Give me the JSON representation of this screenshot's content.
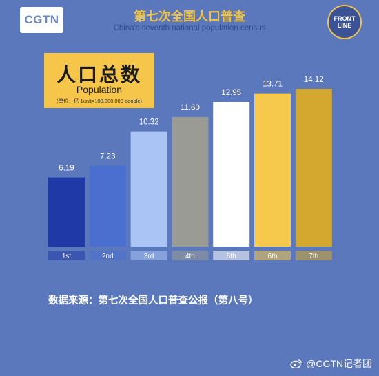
{
  "header": {
    "brand": "CGTN",
    "frontline": [
      "FRONT",
      "LINE"
    ],
    "title_cn": "第七次全国人口普查",
    "title_en": "China's seventh national population census"
  },
  "label_box": {
    "title_cn": "人口总数",
    "title_en": "Population",
    "unit": "(单位：亿 1unit=100,000,000 people)"
  },
  "footer": {
    "source": "数据来源：第七次全国人口普查公报（第八号）",
    "watermark": "@CGTN记者团"
  },
  "chart_data": {
    "type": "bar",
    "title": "",
    "categories": [
      "1st",
      "2nd",
      "3rd",
      "4th",
      "5th",
      "6th",
      "7th"
    ],
    "values": [
      6.19,
      7.23,
      10.32,
      11.6,
      12.95,
      13.71,
      14.12
    ],
    "value_labels": [
      "6.19",
      "7.23",
      "10.32",
      "11.60",
      "12.95",
      "13.71",
      "14.12"
    ],
    "colors": [
      "#1f3aa6",
      "#4a6fce",
      "#a9c4f5",
      "#9b9b95",
      "#ffffff",
      "#f6c94c",
      "#d4a72e"
    ],
    "ylim": [
      0,
      14.12
    ],
    "grid": false,
    "legend": "none"
  }
}
